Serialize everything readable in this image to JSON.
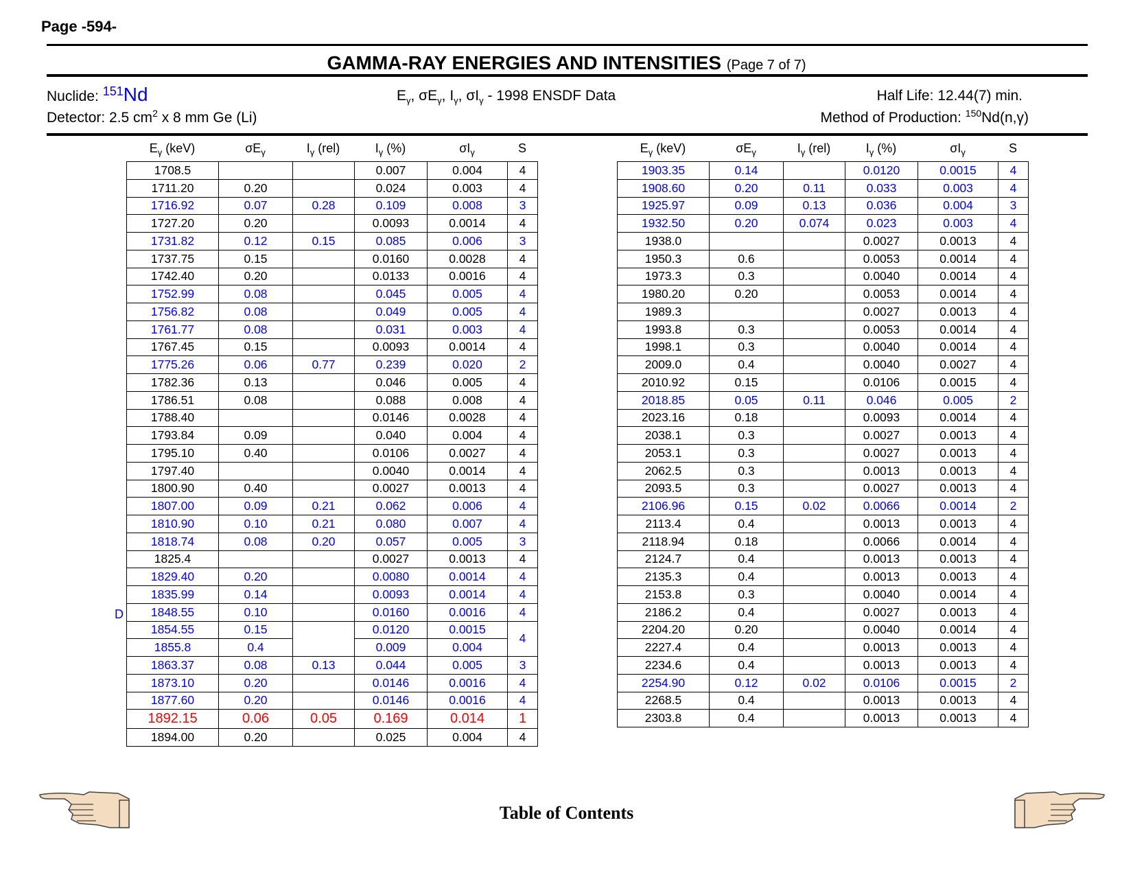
{
  "page_label": "Page -594-",
  "title": "GAMMA-RAY ENERGIES AND INTENSITIES",
  "title_sub": "(Page 7 of 7)",
  "nuclide_label": "Nuclide: ",
  "nuclide_mass": "151",
  "nuclide_element": "Nd",
  "detector_pre": "Detector: 2.5 cm",
  "detector_exp": "2",
  "detector_post": " x 8 mm Ge (Li)",
  "data_source": "- 1998 ENSDF Data",
  "half_life": "Half Life: 12.44(7) min.",
  "production_label": "Method of Production: ",
  "production_mass": "150",
  "production_reaction": "Nd(n,γ)",
  "columns": [
    "Eγ (keV)",
    "σEγ",
    "Iγ (rel)",
    "Iγ (%)",
    "σIγ",
    "S"
  ],
  "footnote_mark": "D",
  "footer_link": "Table of Contents",
  "colors": {
    "highlight_blue": "#0000ff",
    "highlight_red": "#ff0000"
  },
  "icons": [
    "hand-pointing-left-icon",
    "hand-pointing-right-icon"
  ],
  "left_table": [
    {
      "e": "1708.5",
      "se": "",
      "irel": "",
      "ipct": "0.007",
      "si": "0.004",
      "s": "4",
      "c": ""
    },
    {
      "e": "1711.20",
      "se": "0.20",
      "irel": "",
      "ipct": "0.024",
      "si": "0.003",
      "s": "4",
      "c": ""
    },
    {
      "e": "1716.92",
      "se": "0.07",
      "irel": "0.28",
      "ipct": "0.109",
      "si": "0.008",
      "s": "3",
      "c": "blue"
    },
    {
      "e": "1727.20",
      "se": "0.20",
      "irel": "",
      "ipct": "0.0093",
      "si": "0.0014",
      "s": "4",
      "c": ""
    },
    {
      "e": "1731.82",
      "se": "0.12",
      "irel": "0.15",
      "ipct": "0.085",
      "si": "0.006",
      "s": "3",
      "c": "blue"
    },
    {
      "e": "1737.75",
      "se": "0.15",
      "irel": "",
      "ipct": "0.0160",
      "si": "0.0028",
      "s": "4",
      "c": ""
    },
    {
      "e": "1742.40",
      "se": "0.20",
      "irel": "",
      "ipct": "0.0133",
      "si": "0.0016",
      "s": "4",
      "c": ""
    },
    {
      "e": "1752.99",
      "se": "0.08",
      "irel": "",
      "ipct": "0.045",
      "si": "0.005",
      "s": "4",
      "c": "blue"
    },
    {
      "e": "1756.82",
      "se": "0.08",
      "irel": "",
      "ipct": "0.049",
      "si": "0.005",
      "s": "4",
      "c": "blue"
    },
    {
      "e": "1761.77",
      "se": "0.08",
      "irel": "",
      "ipct": "0.031",
      "si": "0.003",
      "s": "4",
      "c": "blue"
    },
    {
      "e": "1767.45",
      "se": "0.15",
      "irel": "",
      "ipct": "0.0093",
      "si": "0.0014",
      "s": "4",
      "c": ""
    },
    {
      "e": "1775.26",
      "se": "0.06",
      "irel": "0.77",
      "ipct": "0.239",
      "si": "0.020",
      "s": "2",
      "c": "blue"
    },
    {
      "e": "1782.36",
      "se": "0.13",
      "irel": "",
      "ipct": "0.046",
      "si": "0.005",
      "s": "4",
      "c": ""
    },
    {
      "e": "1786.51",
      "se": "0.08",
      "irel": "",
      "ipct": "0.088",
      "si": "0.008",
      "s": "4",
      "c": ""
    },
    {
      "e": "1788.40",
      "se": "",
      "irel": "",
      "ipct": "0.0146",
      "si": "0.0028",
      "s": "4",
      "c": ""
    },
    {
      "e": "1793.84",
      "se": "0.09",
      "irel": "",
      "ipct": "0.040",
      "si": "0.004",
      "s": "4",
      "c": ""
    },
    {
      "e": "1795.10",
      "se": "0.40",
      "irel": "",
      "ipct": "0.0106",
      "si": "0.0027",
      "s": "4",
      "c": ""
    },
    {
      "e": "1797.40",
      "se": "",
      "irel": "",
      "ipct": "0.0040",
      "si": "0.0014",
      "s": "4",
      "c": ""
    },
    {
      "e": "1800.90",
      "se": "0.40",
      "irel": "",
      "ipct": "0.0027",
      "si": "0.0013",
      "s": "4",
      "c": ""
    },
    {
      "e": "1807.00",
      "se": "0.09",
      "irel": "0.21",
      "ipct": "0.062",
      "si": "0.006",
      "s": "4",
      "c": "blue"
    },
    {
      "e": "1810.90",
      "se": "0.10",
      "irel": "0.21",
      "ipct": "0.080",
      "si": "0.007",
      "s": "4",
      "c": "blue"
    },
    {
      "e": "1818.74",
      "se": "0.08",
      "irel": "0.20",
      "ipct": "0.057",
      "si": "0.005",
      "s": "3",
      "c": "blue"
    },
    {
      "e": "1825.4",
      "se": "",
      "irel": "",
      "ipct": "0.0027",
      "si": "0.0013",
      "s": "4",
      "c": ""
    },
    {
      "e": "1829.40",
      "se": "0.20",
      "irel": "",
      "ipct": "0.0080",
      "si": "0.0014",
      "s": "4",
      "c": "blue"
    },
    {
      "e": "1835.99",
      "se": "0.14",
      "irel": "",
      "ipct": "0.0093",
      "si": "0.0014",
      "s": "4",
      "c": "blue"
    },
    {
      "e": "1848.55",
      "se": "0.10",
      "irel": "",
      "ipct": "0.0160",
      "si": "0.0016",
      "s": "4",
      "c": "blue"
    },
    {
      "e": "1854.55",
      "se": "0.15",
      "irel": "",
      "ipct": "0.0120",
      "si": "0.0015",
      "s": "4",
      "c": "blue"
    },
    {
      "e": "1855.8",
      "se": "0.4",
      "irel": "",
      "ipct": "0.009",
      "si": "0.004",
      "s": "",
      "c": "blue"
    },
    {
      "e": "1863.37",
      "se": "0.08",
      "irel": "0.13",
      "ipct": "0.044",
      "si": "0.005",
      "s": "3",
      "c": "blue"
    },
    {
      "e": "1873.10",
      "se": "0.20",
      "irel": "",
      "ipct": "0.0146",
      "si": "0.0016",
      "s": "4",
      "c": "blue"
    },
    {
      "e": "1877.60",
      "se": "0.20",
      "irel": "",
      "ipct": "0.0146",
      "si": "0.0016",
      "s": "4",
      "c": "blue"
    },
    {
      "e": "1892.15",
      "se": "0.06",
      "irel": "0.05",
      "ipct": "0.169",
      "si": "0.014",
      "s": "1",
      "c": "red"
    },
    {
      "e": "1894.00",
      "se": "0.20",
      "irel": "",
      "ipct": "0.025",
      "si": "0.004",
      "s": "4",
      "c": ""
    }
  ],
  "right_table": [
    {
      "e": "1903.35",
      "se": "0.14",
      "irel": "",
      "ipct": "0.0120",
      "si": "0.0015",
      "s": "4",
      "c": "blue"
    },
    {
      "e": "1908.60",
      "se": "0.20",
      "irel": "0.11",
      "ipct": "0.033",
      "si": "0.003",
      "s": "4",
      "c": "blue"
    },
    {
      "e": "1925.97",
      "se": "0.09",
      "irel": "0.13",
      "ipct": "0.036",
      "si": "0.004",
      "s": "3",
      "c": "blue"
    },
    {
      "e": "1932.50",
      "se": "0.20",
      "irel": "0.074",
      "ipct": "0.023",
      "si": "0.003",
      "s": "4",
      "c": "blue"
    },
    {
      "e": "1938.0",
      "se": "",
      "irel": "",
      "ipct": "0.0027",
      "si": "0.0013",
      "s": "4",
      "c": ""
    },
    {
      "e": "1950.3",
      "se": "0.6",
      "irel": "",
      "ipct": "0.0053",
      "si": "0.0014",
      "s": "4",
      "c": ""
    },
    {
      "e": "1973.3",
      "se": "0.3",
      "irel": "",
      "ipct": "0.0040",
      "si": "0.0014",
      "s": "4",
      "c": ""
    },
    {
      "e": "1980.20",
      "se": "0.20",
      "irel": "",
      "ipct": "0.0053",
      "si": "0.0014",
      "s": "4",
      "c": ""
    },
    {
      "e": "1989.3",
      "se": "",
      "irel": "",
      "ipct": "0.0027",
      "si": "0.0013",
      "s": "4",
      "c": ""
    },
    {
      "e": "1993.8",
      "se": "0.3",
      "irel": "",
      "ipct": "0.0053",
      "si": "0.0014",
      "s": "4",
      "c": ""
    },
    {
      "e": "1998.1",
      "se": "0.3",
      "irel": "",
      "ipct": "0.0040",
      "si": "0.0014",
      "s": "4",
      "c": ""
    },
    {
      "e": "2009.0",
      "se": "0.4",
      "irel": "",
      "ipct": "0.0040",
      "si": "0.0027",
      "s": "4",
      "c": ""
    },
    {
      "e": "2010.92",
      "se": "0.15",
      "irel": "",
      "ipct": "0.0106",
      "si": "0.0015",
      "s": "4",
      "c": ""
    },
    {
      "e": "2018.85",
      "se": "0.05",
      "irel": "0.11",
      "ipct": "0.046",
      "si": "0.005",
      "s": "2",
      "c": "blue"
    },
    {
      "e": "2023.16",
      "se": "0.18",
      "irel": "",
      "ipct": "0.0093",
      "si": "0.0014",
      "s": "4",
      "c": ""
    },
    {
      "e": "2038.1",
      "se": "0.3",
      "irel": "",
      "ipct": "0.0027",
      "si": "0.0013",
      "s": "4",
      "c": ""
    },
    {
      "e": "2053.1",
      "se": "0.3",
      "irel": "",
      "ipct": "0.0027",
      "si": "0.0013",
      "s": "4",
      "c": ""
    },
    {
      "e": "2062.5",
      "se": "0.3",
      "irel": "",
      "ipct": "0.0013",
      "si": "0.0013",
      "s": "4",
      "c": ""
    },
    {
      "e": "2093.5",
      "se": "0.3",
      "irel": "",
      "ipct": "0.0027",
      "si": "0.0013",
      "s": "4",
      "c": ""
    },
    {
      "e": "2106.96",
      "se": "0.15",
      "irel": "0.02",
      "ipct": "0.0066",
      "si": "0.0014",
      "s": "2",
      "c": "blue"
    },
    {
      "e": "2113.4",
      "se": "0.4",
      "irel": "",
      "ipct": "0.0013",
      "si": "0.0013",
      "s": "4",
      "c": ""
    },
    {
      "e": "2118.94",
      "se": "0.18",
      "irel": "",
      "ipct": "0.0066",
      "si": "0.0014",
      "s": "4",
      "c": ""
    },
    {
      "e": "2124.7",
      "se": "0.4",
      "irel": "",
      "ipct": "0.0013",
      "si": "0.0013",
      "s": "4",
      "c": ""
    },
    {
      "e": "2135.3",
      "se": "0.4",
      "irel": "",
      "ipct": "0.0013",
      "si": "0.0013",
      "s": "4",
      "c": ""
    },
    {
      "e": "2153.8",
      "se": "0.3",
      "irel": "",
      "ipct": "0.0040",
      "si": "0.0014",
      "s": "4",
      "c": ""
    },
    {
      "e": "2186.2",
      "se": "0.4",
      "irel": "",
      "ipct": "0.0027",
      "si": "0.0013",
      "s": "4",
      "c": ""
    },
    {
      "e": "2204.20",
      "se": "0.20",
      "irel": "",
      "ipct": "0.0040",
      "si": "0.0014",
      "s": "4",
      "c": ""
    },
    {
      "e": "2227.4",
      "se": "0.4",
      "irel": "",
      "ipct": "0.0013",
      "si": "0.0013",
      "s": "4",
      "c": ""
    },
    {
      "e": "2234.6",
      "se": "0.4",
      "irel": "",
      "ipct": "0.0013",
      "si": "0.0013",
      "s": "4",
      "c": ""
    },
    {
      "e": "2254.90",
      "se": "0.12",
      "irel": "0.02",
      "ipct": "0.0106",
      "si": "0.0015",
      "s": "2",
      "c": "blue"
    },
    {
      "e": "2268.5",
      "se": "0.4",
      "irel": "",
      "ipct": "0.0013",
      "si": "0.0013",
      "s": "4",
      "c": ""
    },
    {
      "e": "2303.8",
      "se": "0.4",
      "irel": "",
      "ipct": "0.0013",
      "si": "0.0013",
      "s": "4",
      "c": ""
    }
  ]
}
